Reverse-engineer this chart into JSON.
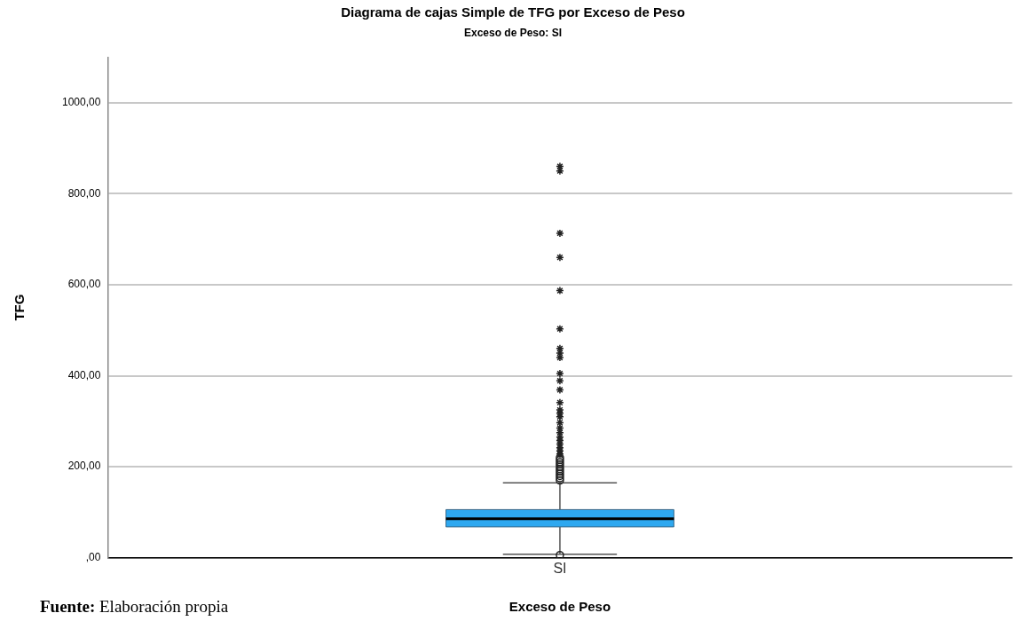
{
  "chart_data": {
    "type": "box",
    "title": "Diagrama de cajas Simple de TFG por Exceso de Peso",
    "subtitle": "Exceso de Peso: SI",
    "xlabel": "Exceso de Peso",
    "ylabel": "TFG",
    "categories": [
      "SI"
    ],
    "series": [
      {
        "color": "#2ea8f0",
        "boxes": [
          {
            "low": 8,
            "q1": 68,
            "median": 86,
            "q3": 106,
            "high": 165,
            "outliers": [
              6,
              170,
              175,
              180,
              185,
              190,
              195,
              200,
              205,
              210,
              215,
              220,
              228,
              235,
              242,
              250,
              258,
              265,
              275,
              285,
              297,
              310,
              318,
              325,
              341,
              369,
              389,
              405,
              440,
              450,
              460,
              503,
              587,
              660,
              713,
              850,
              860
            ]
          }
        ]
      }
    ],
    "ylim": [
      0,
      1100
    ],
    "yticks": [
      {
        "value": 0,
        "label": ",00"
      },
      {
        "value": 200,
        "label": "200,00"
      },
      {
        "value": 400,
        "label": "400,00"
      },
      {
        "value": 600,
        "label": "600,00"
      },
      {
        "value": 800,
        "label": "800,00"
      },
      {
        "value": 1000,
        "label": "1000,00"
      }
    ],
    "grid": "y",
    "annotations": [
      "Fuente: Elaboración propia"
    ]
  }
}
